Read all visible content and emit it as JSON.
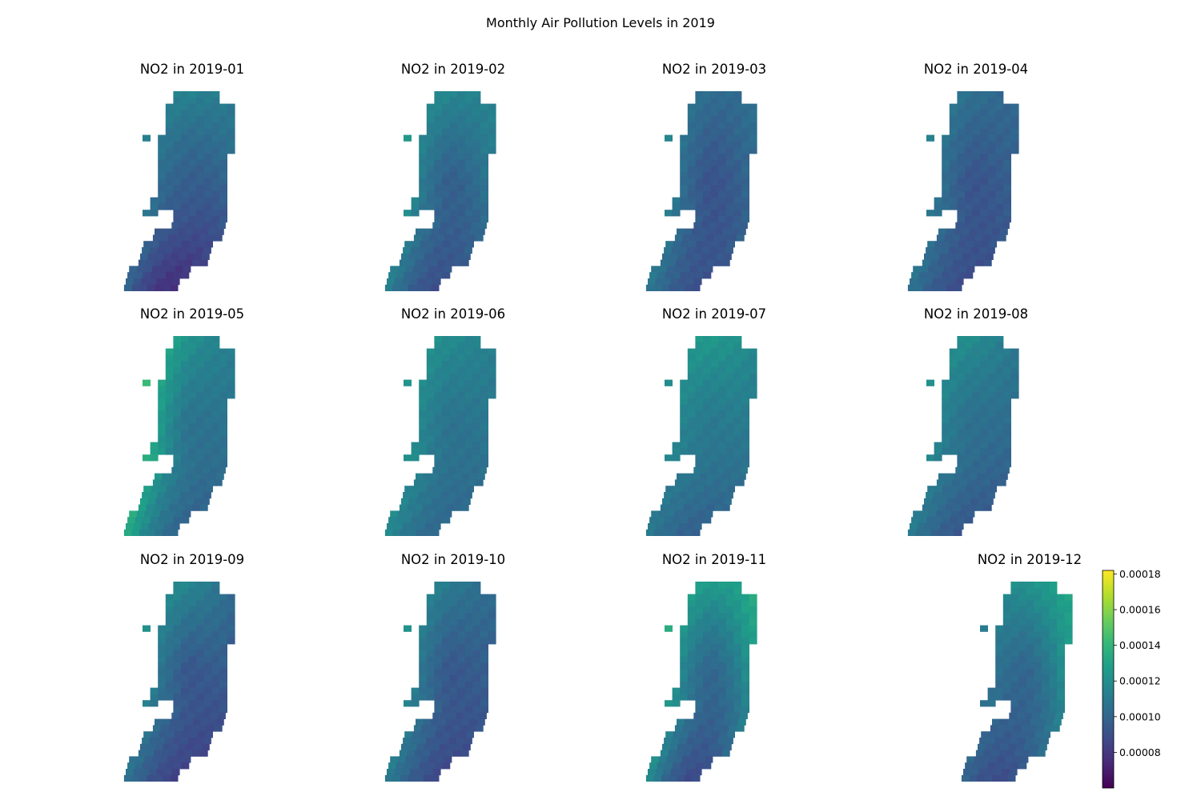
{
  "chart_data": {
    "type": "heatmap",
    "title": "Monthly Air Pollution Levels in 2019",
    "colormap": "viridis",
    "colormap_stops": [
      "#440154",
      "#482878",
      "#3e4989",
      "#31688e",
      "#26828e",
      "#1f9e89",
      "#35b779",
      "#6ece58",
      "#b5de2b",
      "#fde725"
    ],
    "color_range": [
      6e-05,
      0.000182
    ],
    "colorbar_ticks": [
      "0.00008",
      "0.00010",
      "0.00012",
      "0.00014",
      "0.00016",
      "0.00018"
    ],
    "panels": [
      {
        "title": "NO2 in 2019-01",
        "month": "2019-01",
        "north": 0.000113,
        "west": 0.000125,
        "east": 0.000108,
        "center": 9.5e-05,
        "south": 6.5e-05
      },
      {
        "title": "NO2 in 2019-02",
        "month": "2019-02",
        "north": 0.000112,
        "west": 0.00014,
        "east": 0.000118,
        "center": 8.8e-05,
        "south": 7.8e-05
      },
      {
        "title": "NO2 in 2019-03",
        "month": "2019-03",
        "north": 9.8e-05,
        "west": 0.00013,
        "east": 0.00011,
        "center": 8.4e-05,
        "south": 8.2e-05
      },
      {
        "title": "NO2 in 2019-04",
        "month": "2019-04",
        "north": 0.000102,
        "west": 0.000125,
        "east": 0.0001,
        "center": 8.5e-05,
        "south": 8.3e-05
      },
      {
        "title": "NO2 in 2019-05",
        "month": "2019-05",
        "north": 0.000118,
        "west": 0.000168,
        "east": 0.000108,
        "center": 9.8e-05,
        "south": 9e-05
      },
      {
        "title": "NO2 in 2019-06",
        "month": "2019-06",
        "north": 0.000118,
        "west": 0.000135,
        "east": 0.000108,
        "center": 0.0001,
        "south": 9.5e-05
      },
      {
        "title": "NO2 in 2019-07",
        "month": "2019-07",
        "north": 0.000128,
        "west": 0.000122,
        "east": 0.000108,
        "center": 0.000105,
        "south": 9.2e-05
      },
      {
        "title": "NO2 in 2019-08",
        "month": "2019-08",
        "north": 0.00012,
        "west": 0.000128,
        "east": 0.0001,
        "center": 0.0001,
        "south": 8.8e-05
      },
      {
        "title": "NO2 in 2019-09",
        "month": "2019-09",
        "north": 0.000118,
        "west": 0.000128,
        "east": 9e-05,
        "center": 8.2e-05,
        "south": 7.8e-05
      },
      {
        "title": "NO2 in 2019-10",
        "month": "2019-10",
        "north": 0.000108,
        "west": 0.000135,
        "east": 9.8e-05,
        "center": 8.5e-05,
        "south": 8e-05
      },
      {
        "title": "NO2 in 2019-11",
        "month": "2019-11",
        "north": 0.000118,
        "west": 0.000158,
        "east": 0.000148,
        "center": 8.8e-05,
        "south": 6.8e-05
      },
      {
        "title": "NO2 in 2019-12",
        "month": "2019-12",
        "north": 0.00012,
        "west": 0.000115,
        "east": 0.00014,
        "center": 9e-05,
        "south": 7.8e-05
      }
    ]
  }
}
